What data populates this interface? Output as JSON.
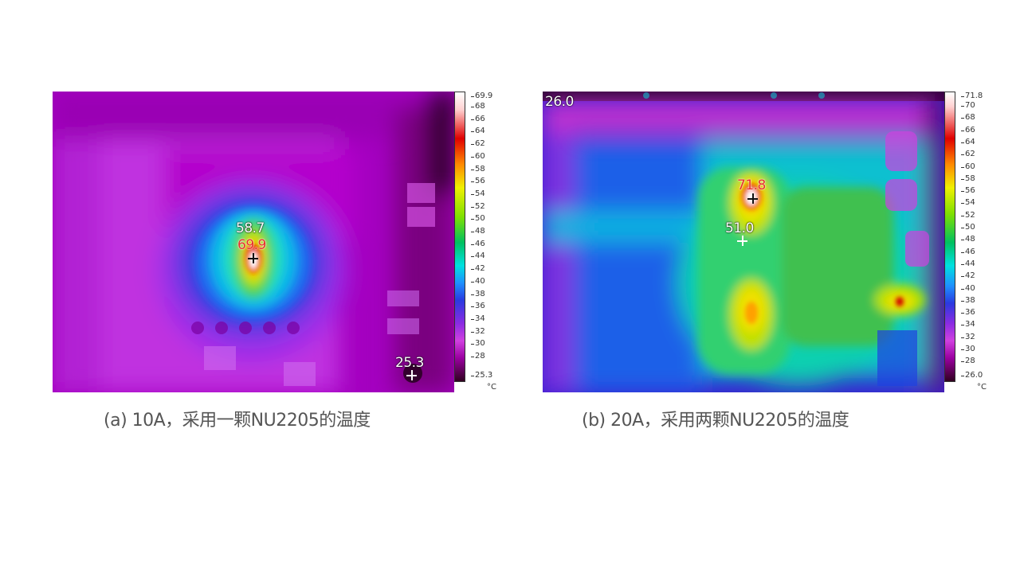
{
  "panel_a": {
    "caption": "(a) 10A，采用一颗NU2205的温度",
    "scale_max": "69.9",
    "scale_min": "25.3",
    "scale_ticks": [
      "68",
      "66",
      "64",
      "62",
      "60",
      "58",
      "56",
      "54",
      "52",
      "50",
      "48",
      "46",
      "44",
      "42",
      "40",
      "38",
      "36",
      "34",
      "32",
      "30",
      "28"
    ],
    "unit": "°C",
    "readouts": [
      "58.7",
      "69.9",
      "25.3"
    ]
  },
  "panel_b": {
    "caption": "(b) 20A，采用两颗NU2205的温度",
    "scale_max": "71.8",
    "scale_min": "26.0",
    "scale_ticks": [
      "70",
      "68",
      "66",
      "64",
      "62",
      "60",
      "58",
      "56",
      "54",
      "52",
      "50",
      "48",
      "46",
      "44",
      "42",
      "40",
      "38",
      "36",
      "34",
      "32",
      "30",
      "28"
    ],
    "unit": "°C",
    "readouts": [
      "26.0",
      "71.8",
      "51.0"
    ]
  },
  "colors": {
    "palette": [
      "#1a0010",
      "#6b0060",
      "#b000b0",
      "#e040e8",
      "#8a2be2",
      "#2a3ae0",
      "#1e90ff",
      "#00e0e0",
      "#00d060",
      "#80e000",
      "#f0f000",
      "#ff9000",
      "#e00000",
      "#ffe0e0",
      "#ffffff"
    ]
  }
}
